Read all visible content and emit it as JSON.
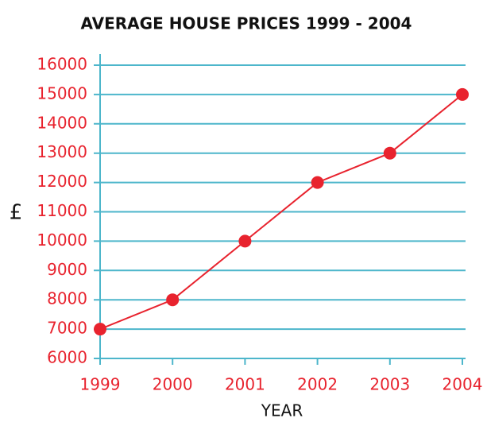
{
  "chart_data": {
    "type": "line",
    "title": "AVERAGE HOUSE PRICES 1999 - 2004",
    "x_label": "YEAR",
    "y_label": "£",
    "x": [
      1999,
      2000,
      2001,
      2002,
      2003,
      2004
    ],
    "values": [
      7000,
      8000,
      10000,
      12000,
      13000,
      15000
    ],
    "color": "#e8232e",
    "grid_color": "#4db6cb",
    "label_color": "#e8232e",
    "xlim": [
      1999,
      2004
    ],
    "xticks": [
      1999,
      2000,
      2001,
      2002,
      2003,
      2004
    ],
    "ylim": [
      6000,
      16000
    ],
    "yticks": [
      6000,
      7000,
      8000,
      9000,
      10000,
      11000,
      12000,
      13000,
      14000,
      15000,
      16000
    ],
    "grid": true
  }
}
